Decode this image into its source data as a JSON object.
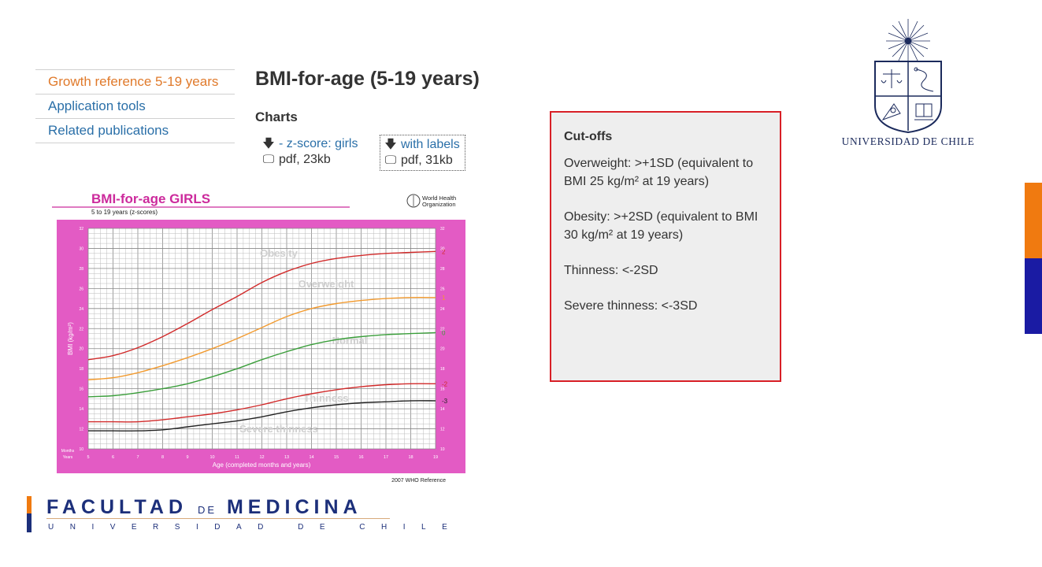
{
  "nav": {
    "items": [
      {
        "label": "Growth reference 5-19 years",
        "active": true
      },
      {
        "label": "Application tools",
        "active": false
      },
      {
        "label": "Related publications",
        "active": false
      }
    ]
  },
  "page": {
    "title": "BMI-for-age (5-19 years)",
    "charts_heading": "Charts",
    "downloads": [
      {
        "label": "- z-score: girls",
        "file": "pdf, 23kb"
      },
      {
        "label": "with labels",
        "file": "pdf, 31kb"
      }
    ]
  },
  "chart": {
    "title": "BMI-for-age  GIRLS",
    "subtitle": "5 to 19 years (z-scores)",
    "org": [
      "World Health",
      "Organization"
    ],
    "ylabel": "BMI (kg/m²)",
    "xlabel": "Age (completed months and years)",
    "footer": "2007 WHO Reference",
    "row_months": "Months",
    "row_years": "Years",
    "zones": [
      "Obesity",
      "Overweight",
      "Normal",
      "Thinness",
      "Severe thinness"
    ],
    "colors": {
      "frame": "#e35bc4",
      "title": "#cc2a9c",
      "red": "#d12a2a",
      "orange": "#f29a2e",
      "green": "#3a9e3a",
      "black": "#222222"
    }
  },
  "chart_data": {
    "type": "line",
    "title": "BMI-for-age  GIRLS",
    "subtitle": "5 to 19 years (z-scores)",
    "xlabel": "Age (completed months and years)",
    "ylabel": "BMI (kg/m²)",
    "xlim": [
      5,
      19
    ],
    "ylim": [
      10,
      32
    ],
    "x_ticks": [
      5,
      6,
      7,
      8,
      9,
      10,
      11,
      12,
      13,
      14,
      15,
      16,
      17,
      18,
      19
    ],
    "y_ticks": [
      10,
      12,
      14,
      16,
      18,
      20,
      22,
      24,
      26,
      28,
      30,
      32
    ],
    "grid": true,
    "x": [
      5,
      6,
      7,
      8,
      9,
      10,
      11,
      12,
      13,
      14,
      15,
      16,
      17,
      18,
      19
    ],
    "series": [
      {
        "name": "2",
        "values": [
          18.9,
          19.3,
          20.1,
          21.2,
          22.5,
          23.9,
          25.2,
          26.6,
          27.7,
          28.5,
          29.0,
          29.3,
          29.5,
          29.6,
          29.7
        ]
      },
      {
        "name": "1",
        "values": [
          16.9,
          17.1,
          17.6,
          18.3,
          19.1,
          20.0,
          21.0,
          22.1,
          23.2,
          24.0,
          24.5,
          24.8,
          25.0,
          25.1,
          25.1
        ]
      },
      {
        "name": "0",
        "values": [
          15.2,
          15.3,
          15.6,
          16.0,
          16.5,
          17.2,
          18.0,
          18.9,
          19.7,
          20.4,
          20.9,
          21.2,
          21.4,
          21.5,
          21.6
        ]
      },
      {
        "name": "-2",
        "values": [
          12.7,
          12.7,
          12.7,
          12.9,
          13.2,
          13.5,
          13.9,
          14.4,
          15.0,
          15.5,
          15.9,
          16.2,
          16.4,
          16.5,
          16.5
        ]
      },
      {
        "name": "-3",
        "values": [
          11.8,
          11.8,
          11.8,
          11.9,
          12.2,
          12.5,
          12.8,
          13.2,
          13.7,
          14.1,
          14.4,
          14.6,
          14.7,
          14.8,
          14.8
        ]
      }
    ]
  },
  "cutoffs": {
    "title": "Cut-offs",
    "items": [
      "Overweight: >+1SD (equivalent to BMI 25 kg/m² at 19 years)",
      "Obesity: >+2SD (equivalent to BMI 30 kg/m² at 19 years)",
      "Thinness: <-2SD",
      "Severe thinness: <-3SD"
    ]
  },
  "logos": {
    "uchile_name": "UNIVERSIDAD DE CHILE",
    "facultad_a": "FACULTAD",
    "facultad_de": "DE",
    "facultad_b": "MEDICINA",
    "facultad_sub": "UNIVERSIDAD DE CHILE"
  },
  "icons": {
    "download": "download-arrow-icon",
    "monitor": "monitor-icon"
  }
}
